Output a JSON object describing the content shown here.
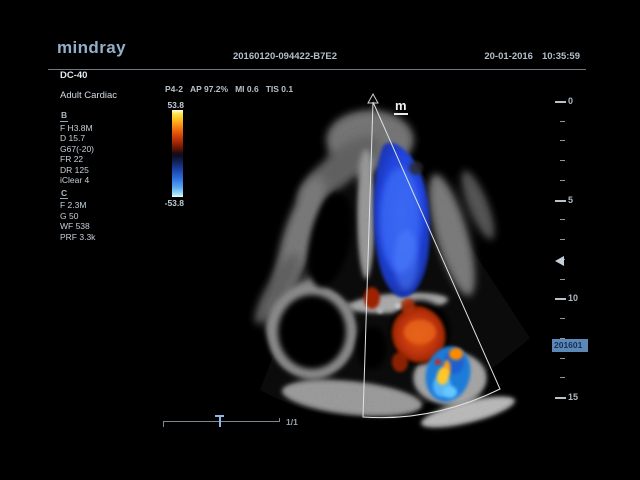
{
  "header": {
    "logo": "mindray",
    "exam_id": "20160120-094422-B7E2",
    "date": "20-01-2016",
    "time": "10:35:59"
  },
  "sidebar": {
    "model": "DC-40",
    "preset": "Adult Cardiac",
    "b_mode": {
      "label": "B",
      "params": [
        "F H3.8M",
        "D 15.7",
        "G67(-20)",
        "FR 22",
        "DR 125",
        "iClear 4"
      ]
    },
    "c_mode": {
      "label": "C",
      "params": [
        "F 2.3M",
        "G 50",
        "WF 538",
        "PRF 3.3k"
      ]
    }
  },
  "status_bar": {
    "probe": "P4-2",
    "acoustic_power": "AP 97.2%",
    "mechanical_index": "MI 0.6",
    "thermal_index": "TIS 0.1"
  },
  "color_scale": {
    "max": "53.8",
    "min": "-53.8"
  },
  "image_area": {
    "orientation_marker": "m",
    "thumbnail_label": "201601",
    "page_indicator": "1/1"
  },
  "depth_ruler": {
    "labels": [
      "0",
      "5",
      "10",
      "15"
    ]
  },
  "colors": {
    "badge_bg": "#5d87b5",
    "logo_text": "#92b0c9",
    "doppler_blue": "#2244dd",
    "doppler_red": "#c03408"
  }
}
